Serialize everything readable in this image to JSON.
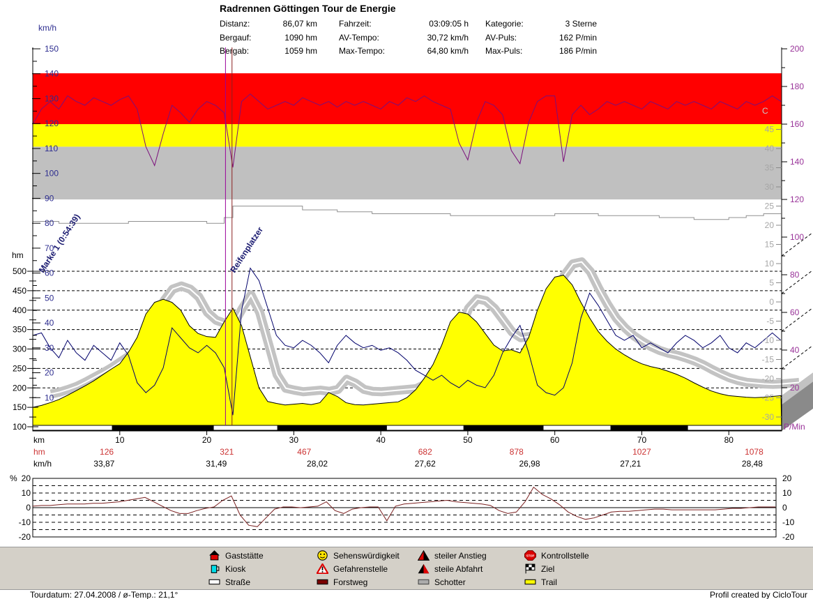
{
  "header": {
    "title": "Radrennen Göttingen Tour de Energie",
    "stats": [
      {
        "label": "Distanz:",
        "value": "86,07 km"
      },
      {
        "label": "Bergauf:",
        "value": "1090 hm"
      },
      {
        "label": "Bergab:",
        "value": "1059 hm"
      },
      {
        "label": "Fahrzeit:",
        "value": "03:09:05 h"
      },
      {
        "label": "AV-Tempo:",
        "value": "30,72 km/h"
      },
      {
        "label": "Max-Tempo:",
        "value": "64,80 km/h"
      },
      {
        "label": "Kategorie:",
        "value": "3 Sterne"
      },
      {
        "label": "AV-Puls:",
        "value": "162 P/min"
      },
      {
        "label": "Max-Puls:",
        "value": "186 P/min"
      }
    ]
  },
  "footer": {
    "left": "Tourdatum: 27.04.2008  /  ø-Temp.: 21,1°",
    "right": "Profil created by CicloTour"
  },
  "legend": {
    "items": [
      {
        "icon": "house-icon",
        "label": "Gaststätte"
      },
      {
        "icon": "mug-icon",
        "label": "Kiosk"
      },
      {
        "icon": "road-icon",
        "label": "Straße"
      },
      {
        "icon": "smiley-icon",
        "label": "Sehenswürdigkeit"
      },
      {
        "icon": "warning-icon",
        "label": "Gefahrenstelle"
      },
      {
        "icon": "forest-road-icon",
        "label": "Forstweg"
      },
      {
        "icon": "steep-up-icon",
        "label": "steiler Anstieg"
      },
      {
        "icon": "steep-down-icon",
        "label": "steile Abfahrt"
      },
      {
        "icon": "gravel-icon",
        "label": "Schotter"
      },
      {
        "icon": "stop-sign-icon",
        "label": "Kontrollstelle"
      },
      {
        "icon": "finish-flag-icon",
        "label": "Ziel"
      },
      {
        "icon": "trail-icon",
        "label": "Trail"
      }
    ]
  },
  "chart_data": {
    "main": {
      "type": "line",
      "x": {
        "unit": "km",
        "min": 0,
        "max": 86.07,
        "ticks": [
          10,
          20,
          30,
          40,
          50,
          60,
          70,
          80
        ]
      },
      "axes": {
        "elevation": {
          "label": "hm",
          "color": "#000000",
          "ticks": [
            500,
            450,
            400,
            350,
            300,
            250,
            200,
            150,
            100
          ],
          "range": [
            100,
            500
          ]
        },
        "speed": {
          "label": "km/h",
          "color": "#2d2d8f",
          "ticks": [
            150,
            140,
            130,
            120,
            110,
            100,
            90,
            80,
            70,
            60,
            50,
            40,
            30,
            20,
            10
          ],
          "range": [
            0,
            150
          ]
        },
        "pulse": {
          "label": "P/Min",
          "color": "#993399",
          "ticks": [
            200,
            180,
            160,
            140,
            120,
            100,
            80,
            60,
            40,
            20
          ],
          "range": [
            20,
            200
          ]
        },
        "temperature": {
          "label": "C",
          "color": "#a6a6a6",
          "ticks": [
            45,
            40,
            35,
            30,
            25,
            20,
            15,
            10,
            5,
            0,
            -5,
            -10,
            -15,
            -20,
            -25,
            -30
          ],
          "range": [
            -30,
            45
          ]
        }
      },
      "zones_pulse": [
        {
          "color": "#ff0000",
          "from": 160,
          "to": 187
        },
        {
          "color": "#ffff00",
          "from": 148,
          "to": 160
        },
        {
          "color": "#c0c0c0",
          "from": 120,
          "to": 148
        }
      ],
      "series_meta": {
        "elevation": {
          "color": "#ffff00",
          "outline": "#000000",
          "shadow": "#c3c3c3"
        },
        "speed": {
          "color": "#00006b"
        },
        "pulse": {
          "color": "#7b0f7b"
        },
        "temperature": {
          "color": "#909090"
        }
      },
      "series": {
        "km_step": 1,
        "elevation_hm": [
          150,
          155,
          162,
          170,
          181,
          193,
          205,
          218,
          233,
          248,
          262,
          292,
          330,
          390,
          420,
          428,
          420,
          400,
          360,
          340,
          332,
          330,
          370,
          405,
          360,
          280,
          200,
          165,
          160,
          156,
          158,
          160,
          157,
          162,
          188,
          178,
          162,
          157,
          156,
          158,
          160,
          162,
          164,
          175,
          195,
          225,
          260,
          310,
          370,
          395,
          390,
          370,
          340,
          310,
          295,
          298,
          290,
          330,
          400,
          455,
          485,
          490,
          465,
          420,
          380,
          345,
          320,
          300,
          285,
          272,
          262,
          255,
          250,
          243,
          235,
          225,
          213,
          202,
          192,
          185,
          180,
          178,
          176,
          175,
          176,
          178,
          180
        ],
        "speed_kmh": [
          35,
          36,
          30,
          26,
          33,
          28,
          25,
          31,
          28,
          25,
          32,
          27,
          16,
          12,
          15,
          22,
          38,
          34,
          30,
          28,
          31,
          28,
          22,
          3,
          45,
          62,
          57,
          46,
          35,
          31,
          30,
          33,
          31,
          28,
          24,
          31,
          35,
          32,
          30,
          31,
          29,
          30,
          28,
          25,
          21,
          19,
          17,
          19,
          16,
          14,
          17,
          15,
          14,
          19,
          28,
          34,
          39,
          28,
          15,
          12,
          11,
          14,
          24,
          42,
          52,
          47,
          41,
          35,
          33,
          35,
          30,
          32,
          30,
          28,
          32,
          35,
          33,
          30,
          32,
          35,
          30,
          28,
          32,
          30,
          33,
          36,
          33
        ],
        "pulse_pmin": [
          160,
          168,
          172,
          168,
          175,
          172,
          170,
          174,
          172,
          170,
          173,
          175,
          168,
          148,
          138,
          155,
          170,
          166,
          161,
          168,
          172,
          170,
          166,
          137,
          172,
          176,
          172,
          168,
          170,
          172,
          170,
          174,
          172,
          170,
          172,
          169,
          172,
          170,
          172,
          170,
          168,
          172,
          170,
          174,
          172,
          175,
          172,
          170,
          168,
          150,
          141,
          161,
          172,
          170,
          165,
          146,
          139,
          161,
          172,
          175,
          175,
          140,
          165,
          170,
          165,
          168,
          172,
          170,
          172,
          170,
          168,
          172,
          170,
          168,
          172,
          170,
          172,
          170,
          168,
          172,
          170,
          168,
          172,
          170,
          172,
          175,
          172
        ],
        "temperature_c": [
          21,
          21,
          21,
          20.5,
          20.5,
          20.5,
          20.5,
          20.5,
          20.5,
          20.5,
          20.5,
          21,
          21,
          21,
          21,
          21,
          21,
          21,
          21,
          21,
          20.5,
          20.5,
          22,
          25,
          25,
          25,
          25,
          25,
          25,
          25,
          25,
          24,
          24,
          24,
          24,
          23.5,
          23.5,
          23.5,
          23.5,
          23,
          23,
          23,
          23,
          23,
          23,
          23,
          23,
          23,
          22.5,
          22.5,
          22.5,
          22.5,
          22.5,
          22.5,
          22.5,
          22.5,
          22.5,
          22.5,
          22.5,
          22.5,
          23,
          23,
          23,
          23,
          23,
          22.5,
          22.5,
          22.5,
          22.5,
          22.5,
          22.5,
          22.5,
          22,
          22,
          22,
          22,
          21.5,
          21.5,
          21.5,
          21.5,
          22,
          22,
          22.5,
          22.5,
          23,
          23,
          23
        ]
      },
      "surface_black_km": [
        [
          9.1,
          20.8
        ],
        [
          28.1,
          40.7
        ],
        [
          49.5,
          58.7
        ],
        [
          66.4,
          75.3
        ]
      ],
      "marker_lines": [
        {
          "km": 22.15,
          "color": "#990099"
        },
        {
          "km": 22.9,
          "color": "#8b2020"
        }
      ],
      "marker_labels": [
        {
          "text": "Marke 1 (0:54:39)",
          "km": 1.2
        },
        {
          "text": "Reifenplatzer",
          "km": 23.2
        }
      ],
      "bottom_rows": {
        "km_label": "km",
        "hm_label": "hm",
        "kmh_label": "km/h",
        "hm_color": "#cc3333",
        "hm_values": [
          {
            "km": 8.5,
            "v": "126"
          },
          {
            "km": 22.3,
            "v": "321"
          },
          {
            "km": 31.2,
            "v": "467"
          },
          {
            "km": 45.1,
            "v": "682"
          },
          {
            "km": 55.6,
            "v": "878"
          },
          {
            "km": 70.0,
            "v": "1027"
          },
          {
            "km": 82.9,
            "v": "1078"
          }
        ],
        "kmh_values": [
          {
            "km": 8.2,
            "v": "33,87"
          },
          {
            "km": 21.1,
            "v": "31,49"
          },
          {
            "km": 32.7,
            "v": "28,02"
          },
          {
            "km": 45.1,
            "v": "27,62"
          },
          {
            "km": 57.1,
            "v": "26,98"
          },
          {
            "km": 68.7,
            "v": "27,21"
          },
          {
            "km": 82.7,
            "v": "28,48"
          }
        ]
      }
    },
    "gradient": {
      "type": "line",
      "ylabel": "%",
      "ticks": [
        20,
        10,
        0,
        -10,
        -20
      ],
      "ylim": [
        -20,
        20
      ],
      "color": "#7a1f1f",
      "km_step": 1,
      "values": [
        1,
        1.5,
        1.5,
        2,
        2.5,
        2.5,
        2.5,
        3,
        3,
        3.5,
        4,
        5,
        6,
        7,
        4,
        1,
        -2,
        -4,
        -4,
        -2,
        -0.5,
        0.5,
        5,
        8,
        -5,
        -12,
        -13,
        -7,
        -1,
        0.5,
        0.5,
        0,
        0.5,
        1,
        4,
        -2,
        -4,
        -1,
        0,
        0.5,
        0.5,
        -9,
        1,
        2.5,
        3,
        3.5,
        4,
        4.5,
        5,
        4,
        3.5,
        3,
        2.5,
        1.5,
        -2,
        -4,
        -3,
        4,
        14,
        9,
        6,
        2,
        -3,
        -6,
        -8,
        -7,
        -5,
        -3,
        -2.5,
        -2.5,
        -2,
        -1.5,
        -1,
        -1,
        -1.5,
        -1.5,
        -1.5,
        -1.5,
        -1.5,
        -1.5,
        -1,
        -0.5,
        -0.5,
        0,
        0.5,
        0.5,
        0.5
      ]
    }
  }
}
